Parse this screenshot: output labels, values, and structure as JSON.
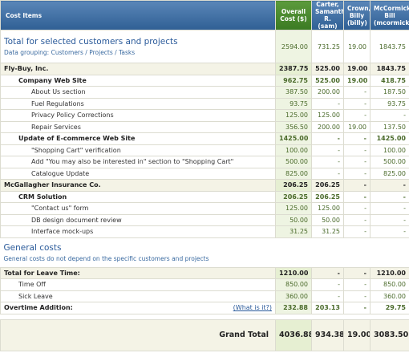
{
  "table": {
    "columns": [
      "Cost Items",
      "Overall Cost ($)",
      "Carter, Samantha R. (sam)",
      "Crown, Billy (billy)",
      "McCormick, Bill (mcormick)"
    ],
    "summary": {
      "title": "Total for selected customers and projects",
      "subtitle": "Data grouping: Customers / Projects / Tasks",
      "values": [
        "2594.00",
        "731.25",
        "19.00",
        "1843.75"
      ]
    },
    "clients": [
      {
        "name": "Fly-Buy, Inc.",
        "values": [
          "2387.75",
          "525.00",
          "19.00",
          "1843.75"
        ],
        "projects": [
          {
            "name": "Company Web Site",
            "values": [
              "962.75",
              "525.00",
              "19.00",
              "418.75"
            ],
            "tasks": [
              {
                "name": "About Us section",
                "values": [
                  "387.50",
                  "200.00",
                  "-",
                  "187.50"
                ]
              },
              {
                "name": "Fuel Regulations",
                "values": [
                  "93.75",
                  "-",
                  "-",
                  "93.75"
                ]
              },
              {
                "name": "Privacy Policy Corrections",
                "values": [
                  "125.00",
                  "125.00",
                  "-",
                  "-"
                ]
              },
              {
                "name": "Repair Services",
                "values": [
                  "356.50",
                  "200.00",
                  "19.00",
                  "137.50"
                ]
              }
            ]
          },
          {
            "name": "Update of E-commerce Web Site",
            "values": [
              "1425.00",
              "-",
              "-",
              "1425.00"
            ],
            "tasks": [
              {
                "name": "\"Shopping Cart\" verification",
                "values": [
                  "100.00",
                  "-",
                  "-",
                  "100.00"
                ]
              },
              {
                "name": "Add \"You may also be interested in\" section to \"Shopping Cart\"",
                "values": [
                  "500.00",
                  "-",
                  "-",
                  "500.00"
                ]
              },
              {
                "name": "Catalogue Update",
                "values": [
                  "825.00",
                  "-",
                  "-",
                  "825.00"
                ]
              }
            ]
          }
        ]
      },
      {
        "name": "McGallagher Insurance Co.",
        "values": [
          "206.25",
          "206.25",
          "-",
          "-"
        ],
        "projects": [
          {
            "name": "CRM Solution",
            "values": [
              "206.25",
              "206.25",
              "-",
              "-"
            ],
            "tasks": [
              {
                "name": "\"Contact us\" form",
                "values": [
                  "125.00",
                  "125.00",
                  "-",
                  "-"
                ]
              },
              {
                "name": "DB design document review",
                "values": [
                  "50.00",
                  "50.00",
                  "-",
                  "-"
                ]
              },
              {
                "name": "Interface mock-ups",
                "values": [
                  "31.25",
                  "31.25",
                  "-",
                  "-"
                ]
              }
            ]
          }
        ]
      }
    ],
    "general": {
      "title": "General costs",
      "subtitle": "General costs do not depend on the specific customers and projects",
      "leave": {
        "name": "Total for Leave Time:",
        "values": [
          "1210.00",
          "-",
          "-",
          "1210.00"
        ],
        "items": [
          {
            "name": "Time Off",
            "values": [
              "850.00",
              "-",
              "-",
              "850.00"
            ]
          },
          {
            "name": "Sick Leave",
            "values": [
              "360.00",
              "-",
              "-",
              "360.00"
            ]
          }
        ]
      },
      "overtime": {
        "name": "Overtime Addition:",
        "link": "(What is it?)",
        "values": [
          "232.88",
          "203.13",
          "-",
          "29.75"
        ]
      }
    },
    "grand_total": {
      "label": "Grand Total",
      "values": [
        "4036.88",
        "934.38",
        "19.00",
        "3083.50"
      ]
    }
  }
}
